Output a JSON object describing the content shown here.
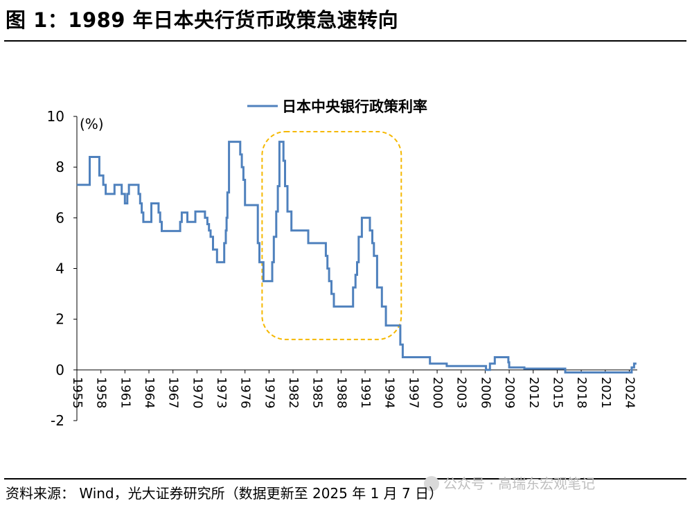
{
  "header": {
    "title": "图 1：1989 年日本央行货币政策急速转向"
  },
  "footer": {
    "source": "资料来源：  Wind，光大证券研究所（数据更新至 2025 年 1 月 7 日）",
    "watermark": "公众号 · 高瑞东宏观笔记"
  },
  "colors": {
    "series": "#4f81bd",
    "highlight": "#f5b800",
    "axis": "#000000"
  },
  "chart_data": {
    "type": "line",
    "title": "",
    "xlabel": "",
    "ylabel": "(%)",
    "xlim": [
      1955,
      2025
    ],
    "ylim": [
      -2,
      10
    ],
    "yticks": [
      -2,
      0,
      2,
      4,
      6,
      8,
      10
    ],
    "xticks": [
      1955,
      1958,
      1961,
      1964,
      1967,
      1970,
      1973,
      1976,
      1979,
      1982,
      1985,
      1988,
      1991,
      1994,
      1997,
      2000,
      2003,
      2006,
      2009,
      2012,
      2015,
      2018,
      2021,
      2024
    ],
    "legend_position": "top-center",
    "highlight_range": {
      "x": [
        1979,
        1995
      ],
      "y": [
        1.2,
        9.4
      ]
    },
    "series": [
      {
        "name": "日本中央银行政策利率",
        "step": true,
        "points": [
          [
            1955.0,
            7.3
          ],
          [
            1956.4,
            7.3
          ],
          [
            1956.6,
            8.4
          ],
          [
            1957.6,
            8.4
          ],
          [
            1957.8,
            7.67
          ],
          [
            1958.3,
            7.3
          ],
          [
            1958.6,
            6.94
          ],
          [
            1959.5,
            6.94
          ],
          [
            1959.7,
            7.3
          ],
          [
            1960.4,
            7.3
          ],
          [
            1960.6,
            6.94
          ],
          [
            1961.0,
            6.57
          ],
          [
            1961.3,
            6.94
          ],
          [
            1961.5,
            7.3
          ],
          [
            1962.5,
            7.3
          ],
          [
            1962.7,
            6.94
          ],
          [
            1962.9,
            6.57
          ],
          [
            1963.1,
            6.21
          ],
          [
            1963.3,
            5.84
          ],
          [
            1964.1,
            5.84
          ],
          [
            1964.3,
            6.57
          ],
          [
            1965.0,
            6.57
          ],
          [
            1965.2,
            6.21
          ],
          [
            1965.4,
            5.84
          ],
          [
            1965.6,
            5.48
          ],
          [
            1967.8,
            5.48
          ],
          [
            1967.9,
            5.84
          ],
          [
            1968.1,
            6.21
          ],
          [
            1968.6,
            6.21
          ],
          [
            1968.8,
            5.84
          ],
          [
            1969.7,
            5.84
          ],
          [
            1969.8,
            6.25
          ],
          [
            1970.9,
            6.25
          ],
          [
            1971.0,
            6.0
          ],
          [
            1971.3,
            5.75
          ],
          [
            1971.5,
            5.5
          ],
          [
            1971.7,
            5.25
          ],
          [
            1972.0,
            4.75
          ],
          [
            1972.5,
            4.25
          ],
          [
            1973.3,
            4.25
          ],
          [
            1973.4,
            5.0
          ],
          [
            1973.6,
            5.5
          ],
          [
            1973.7,
            6.0
          ],
          [
            1973.8,
            7.0
          ],
          [
            1974.0,
            9.0
          ],
          [
            1975.3,
            9.0
          ],
          [
            1975.4,
            8.5
          ],
          [
            1975.6,
            8.0
          ],
          [
            1975.8,
            7.5
          ],
          [
            1976.0,
            6.5
          ],
          [
            1977.5,
            6.5
          ],
          [
            1977.6,
            5.0
          ],
          [
            1977.8,
            4.25
          ],
          [
            1978.2,
            4.25
          ],
          [
            1978.3,
            3.5
          ],
          [
            1979.3,
            3.5
          ],
          [
            1979.4,
            4.25
          ],
          [
            1979.6,
            5.25
          ],
          [
            1979.9,
            6.25
          ],
          [
            1980.1,
            7.25
          ],
          [
            1980.3,
            9.0
          ],
          [
            1980.7,
            9.0
          ],
          [
            1980.8,
            8.25
          ],
          [
            1981.0,
            7.25
          ],
          [
            1981.3,
            6.25
          ],
          [
            1981.8,
            5.5
          ],
          [
            1983.8,
            5.5
          ],
          [
            1983.9,
            5.0
          ],
          [
            1986.0,
            5.0
          ],
          [
            1986.1,
            4.5
          ],
          [
            1986.3,
            4.0
          ],
          [
            1986.5,
            3.5
          ],
          [
            1986.8,
            3.0
          ],
          [
            1987.1,
            2.5
          ],
          [
            1989.4,
            2.5
          ],
          [
            1989.5,
            3.25
          ],
          [
            1989.8,
            3.75
          ],
          [
            1990.0,
            4.25
          ],
          [
            1990.2,
            5.25
          ],
          [
            1990.6,
            6.0
          ],
          [
            1991.5,
            6.0
          ],
          [
            1991.6,
            5.5
          ],
          [
            1991.9,
            5.0
          ],
          [
            1992.1,
            4.5
          ],
          [
            1992.5,
            3.25
          ],
          [
            1993.1,
            2.5
          ],
          [
            1993.6,
            1.75
          ],
          [
            1995.3,
            1.75
          ],
          [
            1995.4,
            1.0
          ],
          [
            1995.7,
            0.5
          ],
          [
            1998.9,
            0.5
          ],
          [
            1999.1,
            0.25
          ],
          [
            2001.2,
            0.15
          ],
          [
            2006.1,
            0.0
          ],
          [
            2006.6,
            0.25
          ],
          [
            2007.2,
            0.5
          ],
          [
            2008.8,
            0.5
          ],
          [
            2008.9,
            0.3
          ],
          [
            2009.0,
            0.1
          ],
          [
            2010.8,
            0.1
          ],
          [
            2010.9,
            0.05
          ],
          [
            2013.5,
            0.05
          ],
          [
            2016.0,
            -0.1
          ],
          [
            2024.1,
            -0.1
          ],
          [
            2024.3,
            0.1
          ],
          [
            2024.6,
            0.25
          ],
          [
            2024.9,
            0.25
          ]
        ]
      }
    ]
  }
}
